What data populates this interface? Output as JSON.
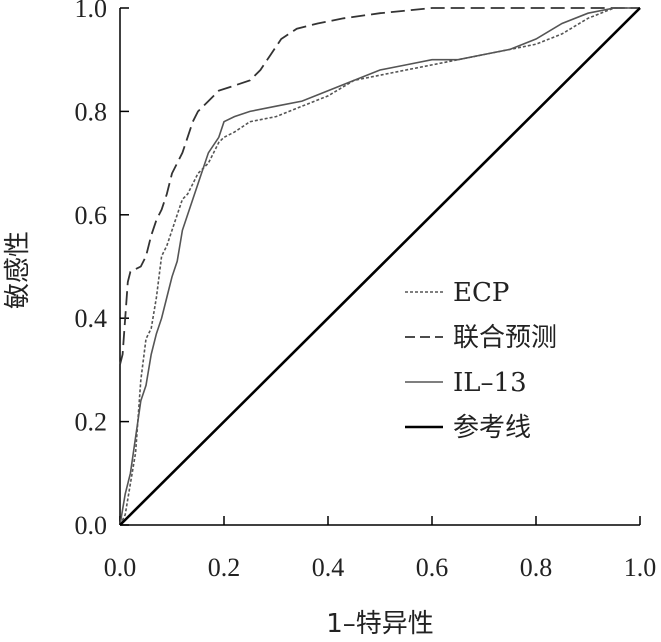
{
  "chart_data": {
    "type": "line",
    "title": "",
    "xlabel": "1–特异性",
    "ylabel": "敏感性",
    "xlim": [
      0,
      1
    ],
    "ylim": [
      0,
      1
    ],
    "grid": false,
    "legend_position": "lower-right",
    "x_ticks": [
      "0.0",
      "0.2",
      "0.4",
      "0.6",
      "0.8",
      "1.0"
    ],
    "y_ticks": [
      "0.0",
      "0.2",
      "0.4",
      "0.6",
      "0.8",
      "1.0"
    ],
    "series": [
      {
        "name": "ECP",
        "style": "dotted",
        "color": "#555555",
        "points": [
          [
            0,
            0
          ],
          [
            0.01,
            0.02
          ],
          [
            0.02,
            0.08
          ],
          [
            0.03,
            0.14
          ],
          [
            0.04,
            0.28
          ],
          [
            0.05,
            0.36
          ],
          [
            0.06,
            0.38
          ],
          [
            0.07,
            0.44
          ],
          [
            0.08,
            0.52
          ],
          [
            0.09,
            0.54
          ],
          [
            0.1,
            0.57
          ],
          [
            0.11,
            0.6
          ],
          [
            0.12,
            0.63
          ],
          [
            0.13,
            0.64
          ],
          [
            0.14,
            0.66
          ],
          [
            0.15,
            0.68
          ],
          [
            0.16,
            0.69
          ],
          [
            0.17,
            0.7
          ],
          [
            0.18,
            0.72
          ],
          [
            0.19,
            0.74
          ],
          [
            0.2,
            0.75
          ],
          [
            0.22,
            0.76
          ],
          [
            0.25,
            0.78
          ],
          [
            0.3,
            0.79
          ],
          [
            0.35,
            0.81
          ],
          [
            0.4,
            0.83
          ],
          [
            0.45,
            0.86
          ],
          [
            0.5,
            0.87
          ],
          [
            0.55,
            0.88
          ],
          [
            0.6,
            0.89
          ],
          [
            0.65,
            0.9
          ],
          [
            0.7,
            0.91
          ],
          [
            0.75,
            0.92
          ],
          [
            0.8,
            0.93
          ],
          [
            0.85,
            0.95
          ],
          [
            0.9,
            0.98
          ],
          [
            0.95,
            1.0
          ],
          [
            1.0,
            1.0
          ]
        ]
      },
      {
        "name": "联合预测",
        "style": "dashed",
        "color": "#333333",
        "points": [
          [
            0,
            0.31
          ],
          [
            0.005,
            0.33
          ],
          [
            0.01,
            0.4
          ],
          [
            0.015,
            0.47
          ],
          [
            0.02,
            0.49
          ],
          [
            0.04,
            0.5
          ],
          [
            0.05,
            0.52
          ],
          [
            0.06,
            0.56
          ],
          [
            0.07,
            0.59
          ],
          [
            0.08,
            0.61
          ],
          [
            0.09,
            0.64
          ],
          [
            0.1,
            0.68
          ],
          [
            0.11,
            0.7
          ],
          [
            0.12,
            0.72
          ],
          [
            0.13,
            0.75
          ],
          [
            0.14,
            0.78
          ],
          [
            0.15,
            0.8
          ],
          [
            0.17,
            0.82
          ],
          [
            0.19,
            0.84
          ],
          [
            0.22,
            0.85
          ],
          [
            0.25,
            0.86
          ],
          [
            0.27,
            0.88
          ],
          [
            0.29,
            0.91
          ],
          [
            0.31,
            0.94
          ],
          [
            0.34,
            0.96
          ],
          [
            0.38,
            0.97
          ],
          [
            0.43,
            0.98
          ],
          [
            0.5,
            0.99
          ],
          [
            0.6,
            1.0
          ],
          [
            1.0,
            1.0
          ]
        ]
      },
      {
        "name": "IL–13",
        "style": "solid-thin",
        "color": "#555555",
        "points": [
          [
            0,
            0
          ],
          [
            0.01,
            0.06
          ],
          [
            0.02,
            0.1
          ],
          [
            0.03,
            0.17
          ],
          [
            0.04,
            0.24
          ],
          [
            0.05,
            0.27
          ],
          [
            0.06,
            0.33
          ],
          [
            0.07,
            0.37
          ],
          [
            0.08,
            0.4
          ],
          [
            0.09,
            0.44
          ],
          [
            0.1,
            0.48
          ],
          [
            0.11,
            0.51
          ],
          [
            0.12,
            0.57
          ],
          [
            0.13,
            0.6
          ],
          [
            0.14,
            0.63
          ],
          [
            0.15,
            0.66
          ],
          [
            0.16,
            0.69
          ],
          [
            0.17,
            0.72
          ],
          [
            0.19,
            0.75
          ],
          [
            0.2,
            0.78
          ],
          [
            0.22,
            0.79
          ],
          [
            0.25,
            0.8
          ],
          [
            0.3,
            0.81
          ],
          [
            0.35,
            0.82
          ],
          [
            0.4,
            0.84
          ],
          [
            0.45,
            0.86
          ],
          [
            0.5,
            0.88
          ],
          [
            0.55,
            0.89
          ],
          [
            0.6,
            0.9
          ],
          [
            0.65,
            0.9
          ],
          [
            0.7,
            0.91
          ],
          [
            0.75,
            0.92
          ],
          [
            0.8,
            0.94
          ],
          [
            0.85,
            0.97
          ],
          [
            0.9,
            0.99
          ],
          [
            0.95,
            1.0
          ],
          [
            1.0,
            1.0
          ]
        ]
      },
      {
        "name": "参考线",
        "style": "solid-thick",
        "color": "#000000",
        "points": [
          [
            0,
            0
          ],
          [
            1,
            1
          ]
        ]
      }
    ]
  }
}
